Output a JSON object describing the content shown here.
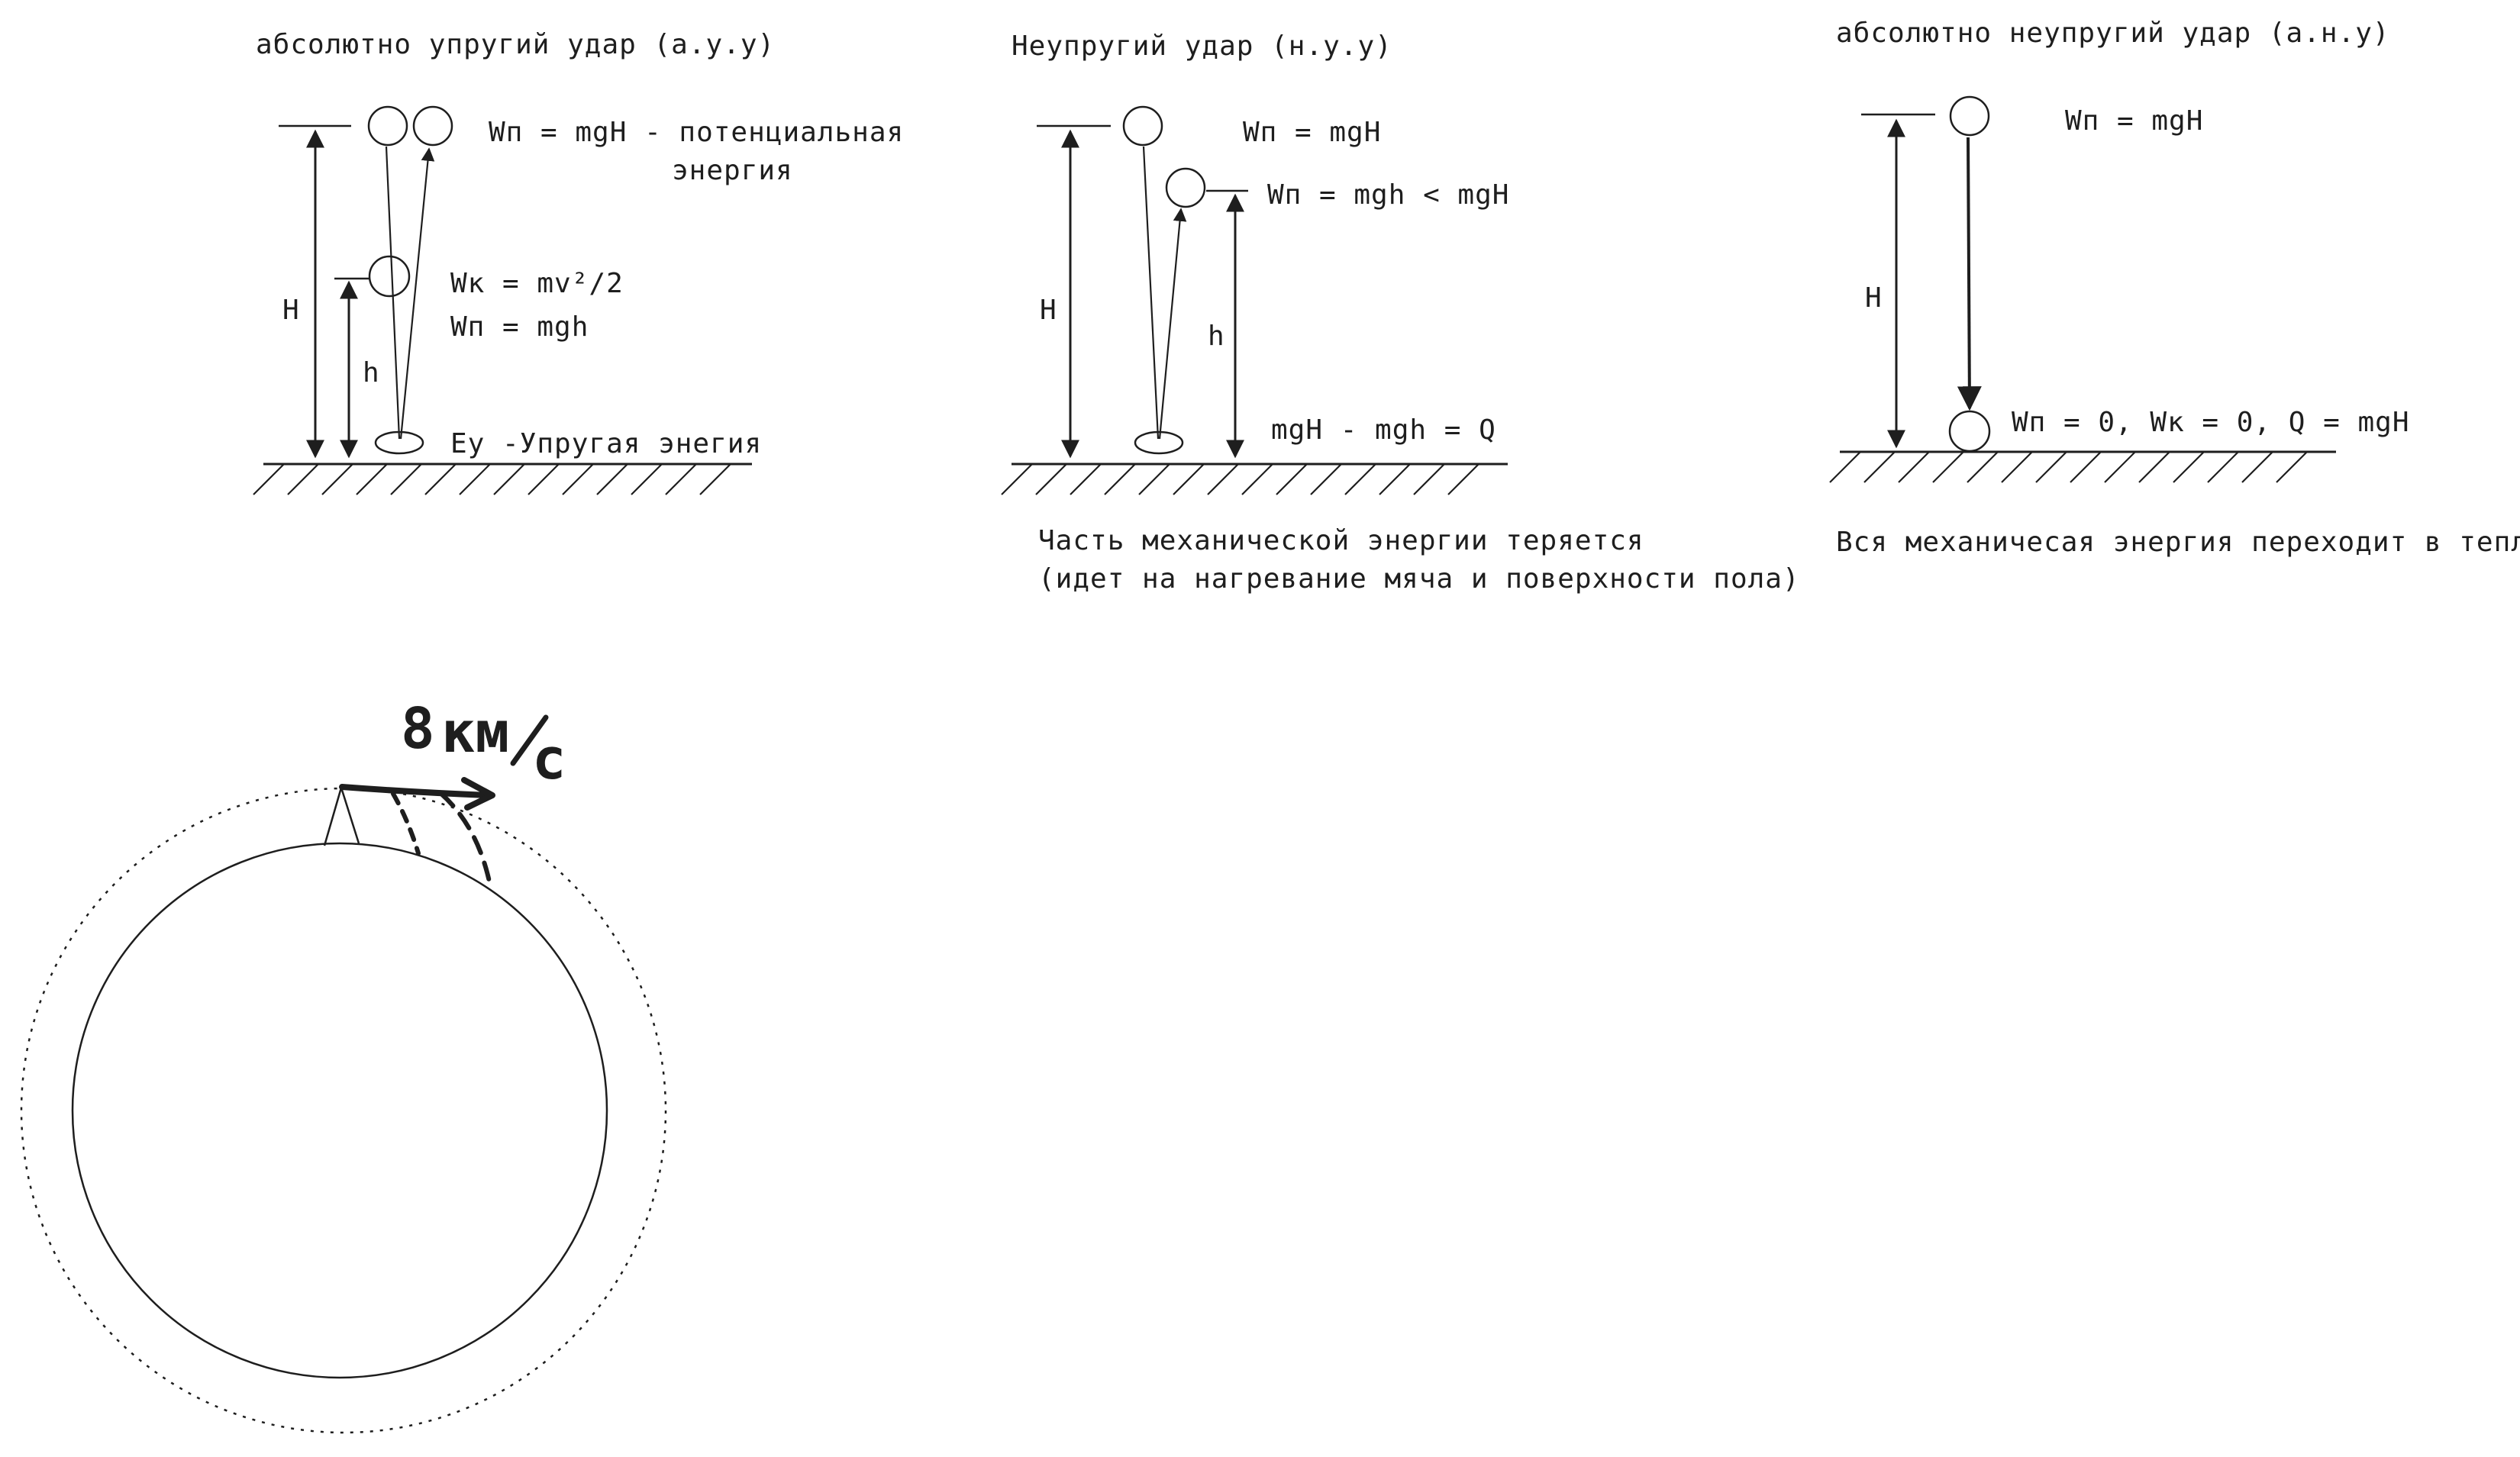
{
  "labels": {
    "elastic_title": "абсолютно упругий удар (а.у.у)",
    "elastic_wp_top": "Wп = mgH - потенциальная",
    "elastic_wp_top_cont": "энергия",
    "elastic_wk": "Wк = mv²/2",
    "elastic_wp_mid": "Wп = mgh",
    "elastic_eu": "Eу -Упругая энегия",
    "H": "H",
    "h": "h",
    "inelastic_title": "Неупругий удар (н.у.у)",
    "inelastic_wp_top": "Wп = mgH",
    "inelastic_wp_mid": "Wп = mgh < mgH",
    "inelastic_q": "mgH - mgh = Q",
    "inelastic_note_1": "Часть механической энергии теряется",
    "inelastic_note_2": "(идет на нагревание мяча и поверхности пола)",
    "perfect_title": "абсолютно неупругий удар (а.н.у)",
    "perfect_wp_top": "Wп = mgH",
    "perfect_bottom": "Wп = 0, Wк = 0, Q = mgH",
    "perfect_note": "Вся механичесая энергия переходит в тепло",
    "orbit_speed_num": "8",
    "orbit_speed_unit": "км",
    "orbit_speed_den": "с"
  },
  "colors": {
    "ink": "#1e1e1e",
    "background": "#ffffff"
  }
}
